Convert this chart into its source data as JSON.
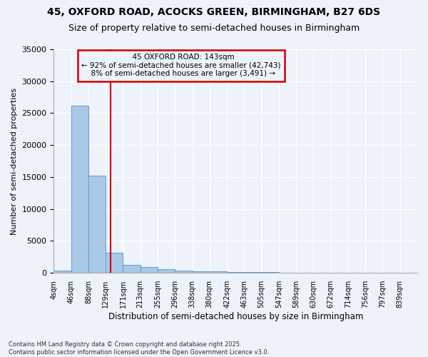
{
  "title": "45, OXFORD ROAD, ACOCKS GREEN, BIRMINGHAM, B27 6DS",
  "subtitle": "Size of property relative to semi-detached houses in Birmingham",
  "xlabel": "Distribution of semi-detached houses by size in Birmingham",
  "ylabel": "Number of semi-detached properties",
  "footnote": "Contains HM Land Registry data © Crown copyright and database right 2025.\nContains public sector information licensed under the Open Government Licence v3.0.",
  "bin_labels": [
    "4sqm",
    "46sqm",
    "88sqm",
    "129sqm",
    "171sqm",
    "213sqm",
    "255sqm",
    "296sqm",
    "338sqm",
    "380sqm",
    "422sqm",
    "463sqm",
    "505sqm",
    "547sqm",
    "589sqm",
    "630sqm",
    "672sqm",
    "714sqm",
    "756sqm",
    "797sqm",
    "839sqm"
  ],
  "bar_values": [
    400,
    26200,
    15200,
    3200,
    1200,
    900,
    600,
    400,
    300,
    200,
    150,
    120,
    100,
    80,
    60,
    50,
    40,
    30,
    20,
    15,
    10
  ],
  "bar_color": "#aac8e8",
  "bar_edge_color": "#6699cc",
  "background_color": "#edf2fb",
  "grid_color": "#ffffff",
  "property_size_bin": 3.3,
  "property_label": "45 OXFORD ROAD: 143sqm",
  "pct_smaller": 92,
  "count_smaller": 42743,
  "pct_larger": 8,
  "count_larger": 3491,
  "vline_color": "#cc0000",
  "annotation_box_color": "#cc0000",
  "ylim": [
    0,
    35000
  ],
  "yticks": [
    0,
    5000,
    10000,
    15000,
    20000,
    25000,
    30000,
    35000
  ]
}
